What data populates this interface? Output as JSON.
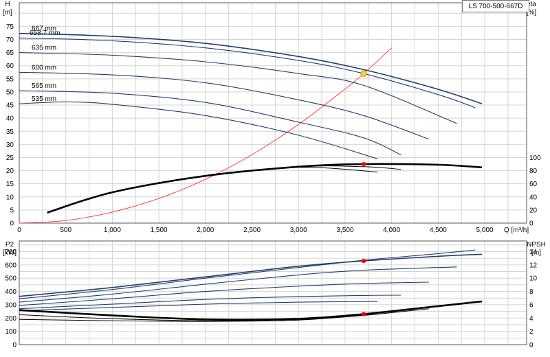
{
  "chart_data": [
    {
      "type": "line",
      "title": "LS 700-500-667D",
      "xlabel": "Q [m³/h]",
      "ylabel_left": "H",
      "ylabel_left_unit": "[m]",
      "ylabel_right": "eta",
      "ylabel_right_unit": "[%]",
      "xlim": [
        0,
        5450
      ],
      "ylim_left": [
        0,
        84
      ],
      "ylim_right": [
        0,
        336
      ],
      "x_ticks": [
        "0",
        "500",
        "1,000",
        "1,500",
        "2,000",
        "2,500",
        "3,000",
        "3,500",
        "4,000",
        "4,500",
        "5,000"
      ],
      "y_left_ticks": [
        "0",
        "5",
        "10",
        "15",
        "20",
        "25",
        "30",
        "35",
        "40",
        "45",
        "50",
        "55",
        "60",
        "65",
        "70",
        "75"
      ],
      "y_right_ticks": [
        "0",
        "20",
        "40",
        "60",
        "80",
        "100"
      ],
      "grid": true,
      "head_curves": [
        {
          "name": "667 mm",
          "x": [
            0,
            1000,
            2000,
            3000,
            3700,
            4500,
            4970
          ],
          "y": [
            72.3,
            71.2,
            68.5,
            63.5,
            58.5,
            51.0,
            45.5
          ]
        },
        {
          "name": "658.7 mm",
          "x": [
            0,
            1000,
            2000,
            3000,
            3700,
            4500,
            4900
          ],
          "y": [
            70.6,
            69.5,
            66.8,
            62.0,
            57.0,
            49.0,
            44.0
          ]
        },
        {
          "name": "635 mm",
          "x": [
            0,
            1000,
            2000,
            3000,
            3700,
            4700
          ],
          "y": [
            65.0,
            64.0,
            61.5,
            57.0,
            52.5,
            38.0
          ]
        },
        {
          "name": "600 mm",
          "x": [
            0,
            1000,
            2000,
            3000,
            3700,
            4400
          ],
          "y": [
            57.5,
            56.5,
            53.5,
            47.0,
            41.0,
            32.0
          ]
        },
        {
          "name": "565 mm",
          "x": [
            0,
            1000,
            2000,
            3000,
            3700,
            4100
          ],
          "y": [
            50.5,
            49.5,
            46.0,
            38.5,
            32.5,
            26.0
          ]
        },
        {
          "name": "535 mm",
          "x": [
            0,
            500,
            1000,
            2000,
            3000,
            3850
          ],
          "y": [
            45.5,
            46.2,
            45.3,
            41.0,
            33.5,
            24.5
          ]
        }
      ],
      "eta_curves": [
        {
          "name": "667 mm",
          "x": [
            300,
            1000,
            2000,
            3000,
            3700,
            4500,
            4970
          ],
          "y": [
            16,
            47,
            72,
            86,
            90,
            89,
            85
          ]
        },
        {
          "name": "600 mm",
          "x": [
            300,
            1000,
            2000,
            3000,
            3700,
            4100
          ],
          "y": [
            16,
            47,
            72,
            86,
            86,
            82
          ]
        },
        {
          "name": "535 mm",
          "x": [
            300,
            1000,
            2000,
            3000,
            3850
          ],
          "y": [
            16,
            47,
            72,
            85,
            78
          ]
        }
      ],
      "system_curve": {
        "x": [
          0,
          500,
          1000,
          1500,
          2000,
          2500,
          3000,
          3500,
          3700,
          4000
        ],
        "y": [
          0,
          1.0,
          4.2,
          9.4,
          16.7,
          26.1,
          37.6,
          51.1,
          57.0,
          66.8
        ]
      },
      "operating_point": {
        "x": 3700,
        "head": 57.0,
        "eta": 90
      },
      "colors": {
        "head": "#1f3d6e",
        "eta": "#000000",
        "system": "#ff3030",
        "point_head": "#ffd23c",
        "point_eta": "#ff0000",
        "grid": "#d4d4d4"
      }
    },
    {
      "type": "line",
      "xlim": [
        0,
        5450
      ],
      "ylabel_left": "P2",
      "ylabel_left_unit": "[kW]",
      "ylabel_right": "NPSH",
      "ylabel_right_unit": "[m]",
      "ylim_left": [
        0,
        780
      ],
      "ylim_right": [
        0,
        15.6
      ],
      "y_left_ticks": [
        "0",
        "100",
        "200",
        "300",
        "400",
        "500",
        "600",
        "700"
      ],
      "y_right_ticks": [
        "0",
        "2",
        "4",
        "6",
        "8",
        "10",
        "12",
        "14"
      ],
      "grid": true,
      "power_curves": [
        {
          "name": "667 mm",
          "x": [
            0,
            1000,
            2000,
            3000,
            3700,
            4500,
            4970
          ],
          "y": [
            363,
            430,
            510,
            590,
            630,
            665,
            680
          ]
        },
        {
          "name": "658.7 mm",
          "x": [
            0,
            1000,
            2000,
            3000,
            3700,
            4500,
            4900
          ],
          "y": [
            345,
            415,
            500,
            580,
            635,
            685,
            713
          ]
        },
        {
          "name": "635 mm",
          "x": [
            0,
            1000,
            2000,
            3000,
            3700,
            4700
          ],
          "y": [
            320,
            380,
            455,
            525,
            560,
            585
          ]
        },
        {
          "name": "600 mm",
          "x": [
            0,
            1000,
            2000,
            3000,
            3700,
            4400
          ],
          "y": [
            295,
            345,
            400,
            440,
            460,
            470
          ]
        },
        {
          "name": "565 mm",
          "x": [
            0,
            1000,
            2000,
            3000,
            3700,
            4100
          ],
          "y": [
            270,
            305,
            340,
            362,
            370,
            372
          ]
        },
        {
          "name": "535 mm",
          "x": [
            0,
            1000,
            2000,
            3000,
            3850
          ],
          "y": [
            255,
            280,
            305,
            320,
            325
          ]
        }
      ],
      "npsh_curves": [
        {
          "name": "667 mm",
          "x": [
            0,
            1000,
            2000,
            3000,
            3700,
            4500,
            4970
          ],
          "y": [
            5.2,
            4.4,
            3.8,
            3.9,
            4.6,
            5.8,
            6.5
          ]
        },
        {
          "name": "600 mm",
          "x": [
            0,
            1000,
            2000,
            3000,
            3700,
            4400
          ],
          "y": [
            4.5,
            3.9,
            3.6,
            3.8,
            4.4,
            5.4
          ]
        },
        {
          "name": "535 mm",
          "x": [
            0,
            1000,
            2000,
            3000,
            3850
          ],
          "y": [
            3.8,
            3.6,
            3.5,
            3.7,
            4.6
          ]
        }
      ],
      "operating_point": {
        "x": 3700,
        "power": 630,
        "npsh": 4.6
      },
      "colors": {
        "power": "#1f3d6e",
        "npsh": "#000000",
        "point": "#ff0000",
        "grid": "#d4d4d4"
      }
    }
  ]
}
